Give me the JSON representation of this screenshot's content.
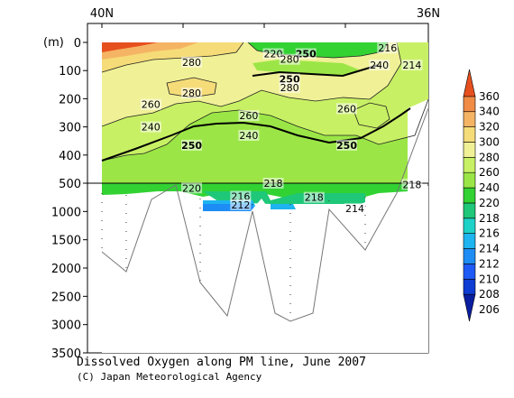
{
  "chart_data": {
    "type": "heatmap",
    "title": "Dissolved Oxygen along PM line, June 2007",
    "credit": "(C) Japan Meteorological Agency",
    "x_axis": {
      "top_labels": [
        {
          "lat": 40,
          "label": "40N"
        },
        {
          "lat": 36,
          "label": "36N"
        }
      ],
      "xlim": [
        40,
        36
      ]
    },
    "y_axis": {
      "unit_label": "(m)",
      "upper_panel": {
        "range": [
          0,
          500
        ],
        "ticks": [
          0,
          100,
          200,
          300,
          400,
          500
        ]
      },
      "lower_panel": {
        "range": [
          500,
          3500
        ],
        "ticks": [
          1000,
          1500,
          2000,
          2500,
          3000,
          3500
        ]
      }
    },
    "colorbar": {
      "levels": [
        206,
        208,
        210,
        212,
        214,
        216,
        218,
        220,
        240,
        260,
        280,
        300,
        320,
        340,
        360
      ],
      "colors": [
        "#0a1ea0",
        "#0f3cd2",
        "#1e5af5",
        "#1e8cf5",
        "#1eb4f0",
        "#1ed2c8",
        "#1ec878",
        "#32d232",
        "#9be646",
        "#c8f064",
        "#f0f096",
        "#f5dc78",
        "#f5b464",
        "#f08c46",
        "#e6501e"
      ]
    },
    "contour_labels": [
      {
        "text": "280",
        "lat": 38.9,
        "depth": 70,
        "bold": false
      },
      {
        "text": "280",
        "lat": 38.9,
        "depth": 180,
        "bold": false
      },
      {
        "text": "260",
        "lat": 39.4,
        "depth": 220,
        "bold": false
      },
      {
        "text": "240",
        "lat": 39.4,
        "depth": 300,
        "bold": false
      },
      {
        "text": "250",
        "lat": 38.9,
        "depth": 365,
        "bold": true
      },
      {
        "text": "260",
        "lat": 38.2,
        "depth": 260,
        "bold": false
      },
      {
        "text": "240",
        "lat": 38.2,
        "depth": 330,
        "bold": false
      },
      {
        "text": "220",
        "lat": 37.9,
        "depth": 40,
        "bold": false
      },
      {
        "text": "250",
        "lat": 37.5,
        "depth": 40,
        "bold": true
      },
      {
        "text": "250",
        "lat": 37.7,
        "depth": 130,
        "bold": true
      },
      {
        "text": "280",
        "lat": 37.7,
        "depth": 160,
        "bold": false
      },
      {
        "text": "280",
        "lat": 37.7,
        "depth": 60,
        "bold": false
      },
      {
        "text": "260",
        "lat": 37.0,
        "depth": 235,
        "bold": false
      },
      {
        "text": "250",
        "lat": 37.0,
        "depth": 365,
        "bold": true
      },
      {
        "text": "240",
        "lat": 36.6,
        "depth": 80,
        "bold": false
      },
      {
        "text": "220",
        "lat": 38.9,
        "depth": 585,
        "bold": false
      },
      {
        "text": "216",
        "lat": 38.3,
        "depth": 730,
        "bold": false
      },
      {
        "text": "212",
        "lat": 38.3,
        "depth": 880,
        "bold": false
      },
      {
        "text": "218",
        "lat": 37.9,
        "depth": 500,
        "bold": false
      },
      {
        "text": "218",
        "lat": 37.4,
        "depth": 750,
        "bold": false
      },
      {
        "text": "214",
        "lat": 36.9,
        "depth": 950,
        "bold": false
      },
      {
        "text": "218",
        "lat": 36.2,
        "depth": 520,
        "bold": false
      },
      {
        "text": "216",
        "lat": 36.5,
        "depth": 20,
        "bold": false
      },
      {
        "text": "214",
        "lat": 36.2,
        "depth": 80,
        "bold": false
      }
    ]
  }
}
